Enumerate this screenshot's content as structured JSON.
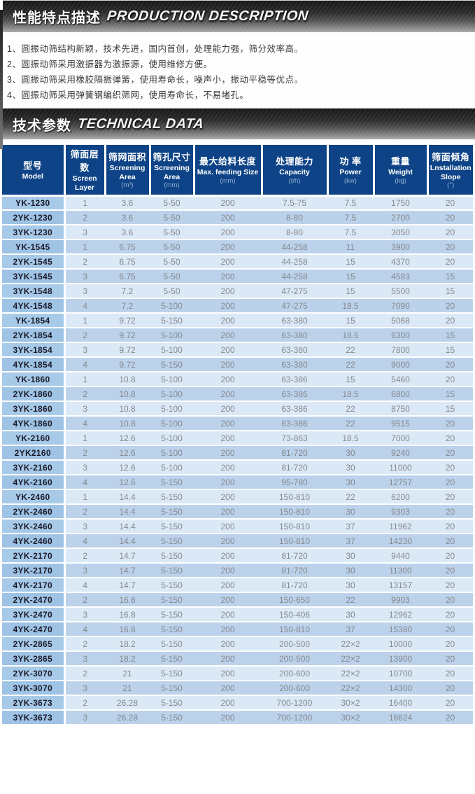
{
  "sections": {
    "production": {
      "title_zh": "性能特点描述",
      "title_en": "PRODUCTION DESCRIPTION"
    },
    "technical": {
      "title_zh": "技术参数",
      "title_en": "TECHNICAL DATA"
    }
  },
  "features": [
    "1、圆振动筛结构新颖，技术先进，国内首创，处理能力强，筛分效率高。",
    "2、圆振动筛采用激振器为激振源，使用维修方便。",
    "3、圆振动筛采用橡胶隔振弹簧，使用寿命长，噪声小，振动平稳等优点。",
    "4、圆振动筛采用弹簧钢编织筛网，使用寿命长，不易堵孔。"
  ],
  "table": {
    "columns": [
      {
        "zh": "型号",
        "en": "Model",
        "unit": ""
      },
      {
        "zh": "筛面层数",
        "en": "Screen Layer",
        "unit": ""
      },
      {
        "zh": "筛网面积",
        "en": "Screening Area",
        "unit": "(m³)"
      },
      {
        "zh": "筛孔尺寸",
        "en": "Screening Area",
        "unit": "(mm)"
      },
      {
        "zh": "最大给料长度",
        "en": "Max. feeding Size",
        "unit": "(mm)"
      },
      {
        "zh": "处理能力",
        "en": "Capacity",
        "unit": "(t/h)"
      },
      {
        "zh": "功 率",
        "en": "Power",
        "unit": "(kw)"
      },
      {
        "zh": "重量",
        "en": "Weight",
        "unit": "(kg)"
      },
      {
        "zh": "筛面倾角",
        "en": "Lnstallation Slope",
        "unit": "(°)"
      }
    ],
    "rows": [
      {
        "model": "YK-1230",
        "values": [
          "1",
          "3.6",
          "5-50",
          "200",
          "7.5-75",
          "7.5",
          "1750",
          "20"
        ]
      },
      {
        "model": "2YK-1230",
        "values": [
          "2",
          "3.6",
          "5-50",
          "200",
          "8-80",
          "7.5",
          "2700",
          "20"
        ]
      },
      {
        "model": "3YK-1230",
        "values": [
          "3",
          "3.6",
          "5-50",
          "200",
          "8-80",
          "7.5",
          "3050",
          "20"
        ]
      },
      {
        "model": "YK-1545",
        "values": [
          "1",
          "6.75",
          "5-50",
          "200",
          "44-258",
          "11",
          "3900",
          "20"
        ]
      },
      {
        "model": "2YK-1545",
        "values": [
          "2",
          "6.75",
          "5-50",
          "200",
          "44-258",
          "15",
          "4370",
          "20"
        ]
      },
      {
        "model": "3YK-1545",
        "values": [
          "3",
          "6.75",
          "5-50",
          "200",
          "44-258",
          "15",
          "4583",
          "15"
        ]
      },
      {
        "model": "3YK-1548",
        "values": [
          "3",
          "7.2",
          "5-50",
          "200",
          "47-275",
          "15",
          "5500",
          "15"
        ]
      },
      {
        "model": "4YK-1548",
        "values": [
          "4",
          "7.2",
          "5-100",
          "200",
          "47-275",
          "18.5",
          "7090",
          "20"
        ]
      },
      {
        "model": "YK-1854",
        "values": [
          "1",
          "9.72",
          "5-150",
          "200",
          "63-380",
          "15",
          "5068",
          "20"
        ]
      },
      {
        "model": "2YK-1854",
        "values": [
          "2",
          "9.72",
          "5-100",
          "200",
          "63-380",
          "18.5",
          "6300",
          "15"
        ]
      },
      {
        "model": "3YK-1854",
        "values": [
          "3",
          "9.72",
          "5-100",
          "200",
          "63-380",
          "22",
          "7800",
          "15"
        ]
      },
      {
        "model": "4YK-1854",
        "values": [
          "4",
          "9.72",
          "5-150",
          "200",
          "63-380",
          "22",
          "9000",
          "20"
        ]
      },
      {
        "model": "YK-1860",
        "values": [
          "1",
          "10.8",
          "5-100",
          "200",
          "63-386",
          "15",
          "5460",
          "20"
        ]
      },
      {
        "model": "2YK-1860",
        "values": [
          "2",
          "10.8",
          "5-100",
          "200",
          "63-386",
          "18.5",
          "6800",
          "15"
        ]
      },
      {
        "model": "3YK-1860",
        "values": [
          "3",
          "10.8",
          "5-100",
          "200",
          "63-386",
          "22",
          "8750",
          "15"
        ]
      },
      {
        "model": "4YK-1860",
        "values": [
          "4",
          "10.8",
          "5-100",
          "200",
          "63-386",
          "22",
          "9515",
          "20"
        ]
      },
      {
        "model": "YK-2160",
        "values": [
          "1",
          "12.6",
          "5-100",
          "200",
          "73-863",
          "18.5",
          "7000",
          "20"
        ]
      },
      {
        "model": "2YK2160",
        "values": [
          "2",
          "12.6",
          "5-100",
          "200",
          "81-720",
          "30",
          "9240",
          "20"
        ]
      },
      {
        "model": "3YK-2160",
        "values": [
          "3",
          "12.6",
          "5-100",
          "200",
          "81-720",
          "30",
          "11000",
          "20"
        ]
      },
      {
        "model": "4YK-2160",
        "values": [
          "4",
          "12.6",
          "5-150",
          "200",
          "95-780",
          "30",
          "12757",
          "20"
        ]
      },
      {
        "model": "YK-2460",
        "values": [
          "1",
          "14.4",
          "5-150",
          "200",
          "150-810",
          "22",
          "6200",
          "20"
        ]
      },
      {
        "model": "2YK-2460",
        "values": [
          "2",
          "14.4",
          "5-150",
          "200",
          "150-810",
          "30",
          "9303",
          "20"
        ]
      },
      {
        "model": "3YK-2460",
        "values": [
          "3",
          "14.4",
          "5-150",
          "200",
          "150-810",
          "37",
          "11962",
          "20"
        ]
      },
      {
        "model": "4YK-2460",
        "values": [
          "4",
          "14.4",
          "5-150",
          "200",
          "150-810",
          "37",
          "14230",
          "20"
        ]
      },
      {
        "model": "2YK-2170",
        "values": [
          "2",
          "14.7",
          "5-150",
          "200",
          "81-720",
          "30",
          "9440",
          "20"
        ]
      },
      {
        "model": "3YK-2170",
        "values": [
          "3",
          "14.7",
          "5-150",
          "200",
          "81-720",
          "30",
          "11300",
          "20"
        ]
      },
      {
        "model": "4YK-2170",
        "values": [
          "4",
          "14.7",
          "5-150",
          "200",
          "81-720",
          "30",
          "13157",
          "20"
        ]
      },
      {
        "model": "2YK-2470",
        "values": [
          "2",
          "16.8",
          "5-150",
          "200",
          "150-650",
          "22",
          "9903",
          "20"
        ]
      },
      {
        "model": "3YK-2470",
        "values": [
          "3",
          "16.8",
          "5-150",
          "200",
          "150-406",
          "30",
          "12962",
          "20"
        ]
      },
      {
        "model": "4YK-2470",
        "values": [
          "4",
          "16.8",
          "5-150",
          "200",
          "150-810",
          "37",
          "15380",
          "20"
        ]
      },
      {
        "model": "2YK-2865",
        "values": [
          "2",
          "18.2",
          "5-150",
          "200",
          "200-500",
          "22×2",
          "10000",
          "20"
        ]
      },
      {
        "model": "3YK-2865",
        "values": [
          "3",
          "18.2",
          "5-150",
          "200",
          "200-500",
          "22×2",
          "13900",
          "20"
        ]
      },
      {
        "model": "2YK-3070",
        "values": [
          "2",
          "21",
          "5-150",
          "200",
          "200-600",
          "22×2",
          "10700",
          "20"
        ]
      },
      {
        "model": "3YK-3070",
        "values": [
          "3",
          "21",
          "5-150",
          "200",
          "200-600",
          "22×2",
          "14300",
          "20"
        ]
      },
      {
        "model": "2YK-3673",
        "values": [
          "2",
          "26.28",
          "5-150",
          "200",
          "700-1200",
          "30×2",
          "16400",
          "20"
        ]
      },
      {
        "model": "3YK-3673",
        "values": [
          "3",
          "26.28",
          "5-150",
          "200",
          "700-1200",
          "30×2",
          "18624",
          "20"
        ]
      }
    ]
  },
  "colors": {
    "header_bg": "#0e4487",
    "header_unit_text": "#92add2",
    "row_odd_data": "#dbe8f6",
    "row_even_data": "#bcd2eb",
    "row_odd_model": "#a8cae9",
    "row_even_model": "#9ec3e5",
    "model_text": "#1a1a28",
    "data_text": "#84898f",
    "banner_dark": "#161616",
    "banner_light": "#ababab"
  }
}
